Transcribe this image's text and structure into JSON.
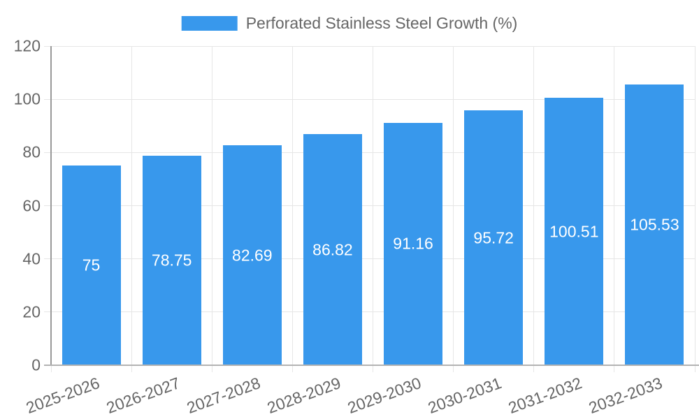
{
  "chart_data": {
    "type": "bar",
    "title": "",
    "legend": "Perforated Stainless Steel Growth (%)",
    "legend_position": "top",
    "categories": [
      "2025-2026",
      "2026-2027",
      "2027-2028",
      "2028-2029",
      "2029-2030",
      "2030-2031",
      "2031-2032",
      "2032-2033"
    ],
    "values": [
      75,
      78.75,
      82.69,
      86.82,
      91.16,
      95.72,
      100.51,
      105.53
    ],
    "value_labels": [
      "75",
      "78.75",
      "82.69",
      "86.82",
      "91.16",
      "95.72",
      "100.51",
      "105.53"
    ],
    "xlabel": "",
    "ylabel": "",
    "ylim": [
      0,
      120
    ],
    "ytick_step": 20,
    "grid": true,
    "colors": {
      "bar": "#3898EC",
      "value_label": "#FFFFFF",
      "axis_text": "#666666",
      "gridline": "#E6E6E6",
      "x_axis_line": "#B3B3B3",
      "y_axis_line": "#999999"
    }
  }
}
